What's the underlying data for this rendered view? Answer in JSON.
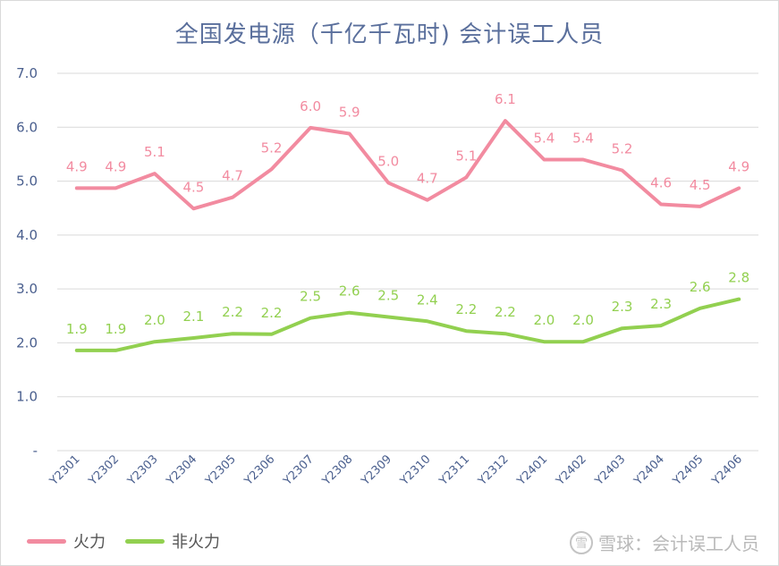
{
  "chart_data": {
    "type": "line",
    "title": "全国发电源（千亿千瓦时) 会计误工人员",
    "xlabel": "",
    "ylabel": "",
    "categories": [
      "Y2301",
      "Y2302",
      "Y2303",
      "Y2304",
      "Y2305",
      "Y2306",
      "Y2307",
      "Y2308",
      "Y2309",
      "Y2310",
      "Y2311",
      "Y2312",
      "Y2401",
      "Y2402",
      "Y2403",
      "Y2404",
      "Y2405",
      "Y2406"
    ],
    "y_ticks": [
      "-",
      "1.0",
      "2.0",
      "3.0",
      "4.0",
      "5.0",
      "6.0",
      "7.0"
    ],
    "ylim": [
      0,
      7
    ],
    "grid": true,
    "legend_position": "bottom-left",
    "series": [
      {
        "name": "火力",
        "color": "#f28ba0",
        "values": [
          4.87,
          4.87,
          5.14,
          4.49,
          4.7,
          5.22,
          5.99,
          5.88,
          4.97,
          4.65,
          5.07,
          6.12,
          5.4,
          5.4,
          5.2,
          4.57,
          4.53,
          4.87
        ],
        "labels": [
          "4.9",
          "4.9",
          "5.1",
          "4.5",
          "4.7",
          "5.2",
          "6.0",
          "5.9",
          "5.0",
          "4.7",
          "5.1",
          "6.1",
          "5.4",
          "5.4",
          "5.2",
          "4.6",
          "4.5",
          "4.9"
        ]
      },
      {
        "name": "非火力",
        "color": "#92d050",
        "values": [
          1.86,
          1.86,
          2.02,
          2.09,
          2.17,
          2.16,
          2.46,
          2.56,
          2.48,
          2.4,
          2.22,
          2.17,
          2.02,
          2.02,
          2.27,
          2.32,
          2.64,
          2.81
        ],
        "labels": [
          "1.9",
          "1.9",
          "2.0",
          "2.1",
          "2.2",
          "2.2",
          "2.5",
          "2.6",
          "2.5",
          "2.4",
          "2.2",
          "2.2",
          "2.0",
          "2.0",
          "2.3",
          "2.3",
          "2.6",
          "2.8"
        ]
      }
    ]
  },
  "watermark": {
    "logo": "雪",
    "text": "雪球：会计误工人员"
  }
}
